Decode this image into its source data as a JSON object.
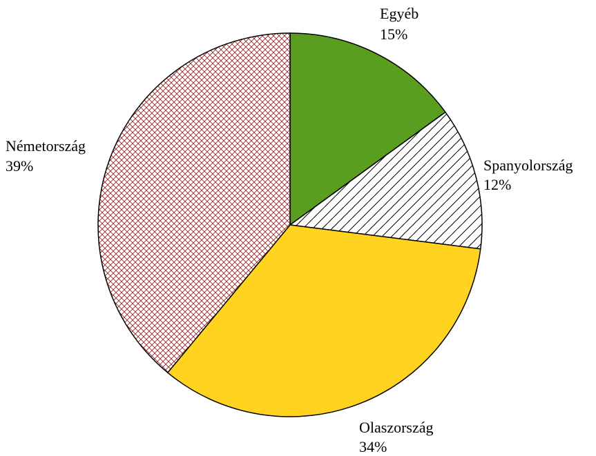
{
  "chart_data": {
    "type": "pie",
    "categories": [
      "Egyéb",
      "Spanyolország",
      "Olaszország",
      "Németország"
    ],
    "values": [
      15,
      12,
      34,
      39
    ],
    "value_labels": [
      "15%",
      "12%",
      "34%",
      "39%"
    ],
    "colors": [
      "#5a9e1f",
      "#ffffff",
      "#ffd320",
      "#ffffff"
    ],
    "hatches": [
      "none",
      "diagonal",
      "none",
      "cross"
    ],
    "hatch_colors": [
      "#000000",
      "#000000",
      "#000000",
      "#8b1a1a"
    ]
  }
}
